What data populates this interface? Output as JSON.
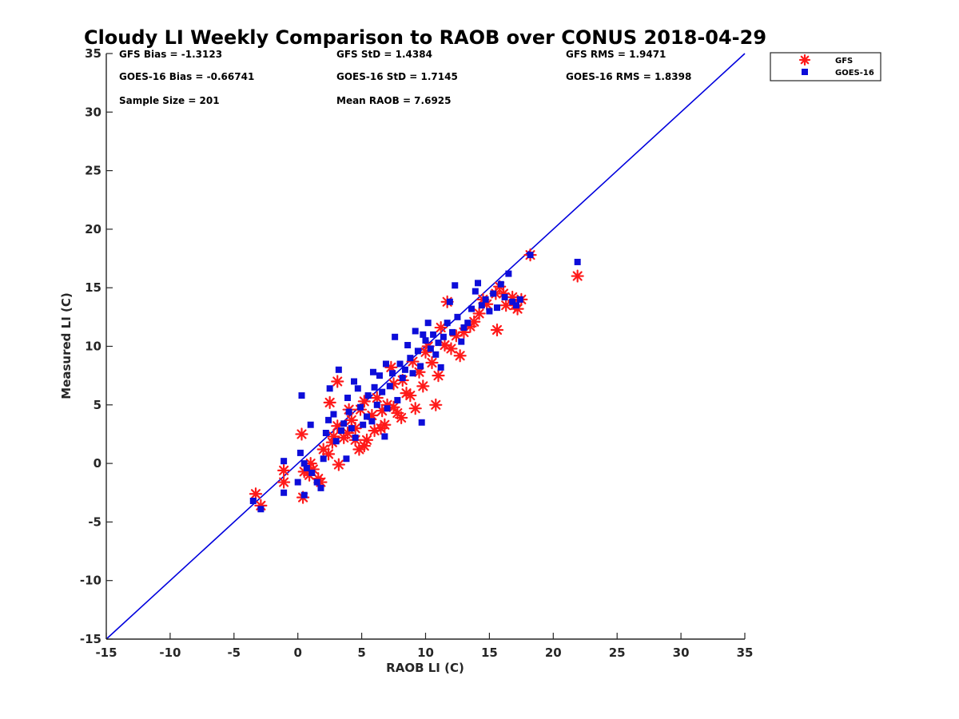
{
  "chart_data": {
    "type": "scatter",
    "title": "Cloudy LI Weekly Comparison to RAOB over CONUS 2018-04-29",
    "xlabel": "RAOB LI (C)",
    "ylabel": "Measured LI (C)",
    "xlim": [
      -15,
      35
    ],
    "ylim": [
      -15,
      35
    ],
    "xticks": [
      -15,
      -10,
      -5,
      0,
      5,
      10,
      15,
      20,
      25,
      30,
      35
    ],
    "yticks": [
      -15,
      -10,
      -5,
      0,
      5,
      10,
      15,
      20,
      25,
      30,
      35
    ],
    "grid": false,
    "legend_position": "top-right, outside plot",
    "reference_line": {
      "x": [
        -15,
        35
      ],
      "y": [
        -15,
        35
      ],
      "color": "#0000dd"
    },
    "stats": [
      "GFS Bias = -1.3123",
      "GFS StD = 1.4384",
      "GFS RMS = 1.9471",
      "GOES-16 Bias = -0.66741",
      "GOES-16 StD = 1.7145",
      "GOES-16 RMS = 1.8398",
      "Sample Size = 201",
      "Mean RAOB = 7.6925"
    ],
    "series": [
      {
        "name": "GFS",
        "marker": "asterisk",
        "color": "#ff1a1a",
        "points": [
          [
            -3.3,
            -2.6
          ],
          [
            -2.9,
            -3.6
          ],
          [
            -1.1,
            -0.6
          ],
          [
            -1.1,
            -1.6
          ],
          [
            0.3,
            2.5
          ],
          [
            0.4,
            -2.9
          ],
          [
            0.5,
            -0.7
          ],
          [
            0.9,
            -1.0
          ],
          [
            1.0,
            0.0
          ],
          [
            1.2,
            -0.5
          ],
          [
            1.6,
            -1.3
          ],
          [
            1.8,
            -1.6
          ],
          [
            2.0,
            1.2
          ],
          [
            2.4,
            0.8
          ],
          [
            2.5,
            5.2
          ],
          [
            2.7,
            1.8
          ],
          [
            2.8,
            2.3
          ],
          [
            3.1,
            3.2
          ],
          [
            3.1,
            7.0
          ],
          [
            3.2,
            -0.1
          ],
          [
            3.6,
            2.2
          ],
          [
            3.9,
            2.6
          ],
          [
            4.0,
            4.6
          ],
          [
            4.2,
            3.7
          ],
          [
            4.5,
            3.0
          ],
          [
            4.5,
            2.0
          ],
          [
            4.8,
            1.2
          ],
          [
            4.9,
            4.6
          ],
          [
            5.2,
            1.5
          ],
          [
            5.2,
            5.3
          ],
          [
            5.4,
            2.0
          ],
          [
            5.8,
            4.1
          ],
          [
            6.0,
            2.8
          ],
          [
            6.2,
            5.6
          ],
          [
            6.5,
            3.0
          ],
          [
            6.6,
            4.5
          ],
          [
            6.8,
            3.3
          ],
          [
            7.0,
            5.0
          ],
          [
            7.3,
            8.2
          ],
          [
            7.5,
            6.8
          ],
          [
            7.5,
            4.8
          ],
          [
            7.8,
            4.3
          ],
          [
            8.1,
            3.9
          ],
          [
            8.2,
            7.1
          ],
          [
            8.5,
            6.0
          ],
          [
            8.8,
            5.8
          ],
          [
            9.0,
            8.7
          ],
          [
            9.2,
            4.7
          ],
          [
            9.5,
            7.8
          ],
          [
            9.8,
            6.6
          ],
          [
            10.0,
            9.5
          ],
          [
            10.2,
            10.0
          ],
          [
            10.5,
            8.6
          ],
          [
            10.8,
            5.0
          ],
          [
            11.0,
            7.5
          ],
          [
            11.2,
            11.6
          ],
          [
            11.5,
            10.1
          ],
          [
            11.7,
            13.8
          ],
          [
            12.0,
            9.8
          ],
          [
            12.4,
            10.9
          ],
          [
            12.7,
            9.2
          ],
          [
            13.0,
            11.2
          ],
          [
            13.5,
            11.7
          ],
          [
            13.8,
            12.1
          ],
          [
            14.2,
            12.8
          ],
          [
            14.5,
            14.0
          ],
          [
            14.8,
            13.6
          ],
          [
            15.5,
            14.5
          ],
          [
            15.6,
            11.4
          ],
          [
            15.8,
            15.1
          ],
          [
            16.1,
            14.5
          ],
          [
            16.3,
            13.5
          ],
          [
            16.8,
            14.2
          ],
          [
            17.0,
            13.5
          ],
          [
            17.2,
            13.2
          ],
          [
            17.5,
            14.0
          ],
          [
            18.2,
            17.8
          ],
          [
            21.9,
            16.0
          ]
        ]
      },
      {
        "name": "GOES-16",
        "marker": "square",
        "color": "#0d0dd9",
        "points": [
          [
            -3.5,
            -3.2
          ],
          [
            -2.9,
            -3.9
          ],
          [
            -1.1,
            0.2
          ],
          [
            -1.1,
            -2.5
          ],
          [
            0.0,
            -1.6
          ],
          [
            0.2,
            0.9
          ],
          [
            0.3,
            5.8
          ],
          [
            0.5,
            0.0
          ],
          [
            0.5,
            -2.7
          ],
          [
            0.7,
            -0.4
          ],
          [
            1.0,
            3.3
          ],
          [
            1.1,
            -0.8
          ],
          [
            1.5,
            -1.6
          ],
          [
            1.8,
            -2.1
          ],
          [
            2.0,
            0.4
          ],
          [
            2.2,
            2.6
          ],
          [
            2.4,
            3.7
          ],
          [
            2.5,
            6.4
          ],
          [
            2.8,
            4.2
          ],
          [
            3.0,
            1.9
          ],
          [
            3.2,
            8.0
          ],
          [
            3.4,
            2.8
          ],
          [
            3.6,
            3.4
          ],
          [
            3.8,
            0.4
          ],
          [
            3.9,
            5.6
          ],
          [
            4.0,
            4.4
          ],
          [
            4.2,
            3.0
          ],
          [
            4.4,
            7.0
          ],
          [
            4.5,
            2.2
          ],
          [
            4.7,
            6.4
          ],
          [
            4.9,
            4.8
          ],
          [
            5.1,
            3.3
          ],
          [
            5.4,
            4.0
          ],
          [
            5.5,
            5.8
          ],
          [
            5.8,
            3.6
          ],
          [
            5.9,
            7.8
          ],
          [
            6.0,
            6.5
          ],
          [
            6.2,
            5.0
          ],
          [
            6.4,
            7.5
          ],
          [
            6.6,
            6.1
          ],
          [
            6.8,
            2.3
          ],
          [
            6.9,
            8.5
          ],
          [
            7.0,
            4.7
          ],
          [
            7.2,
            6.6
          ],
          [
            7.4,
            7.7
          ],
          [
            7.6,
            10.8
          ],
          [
            7.8,
            5.4
          ],
          [
            8.0,
            8.5
          ],
          [
            8.2,
            7.3
          ],
          [
            8.4,
            8.0
          ],
          [
            8.6,
            10.1
          ],
          [
            8.8,
            9.0
          ],
          [
            9.0,
            7.7
          ],
          [
            9.2,
            11.3
          ],
          [
            9.4,
            9.6
          ],
          [
            9.6,
            8.3
          ],
          [
            9.7,
            3.5
          ],
          [
            9.8,
            11.0
          ],
          [
            10.0,
            10.5
          ],
          [
            10.2,
            12.0
          ],
          [
            10.4,
            9.8
          ],
          [
            10.6,
            11.0
          ],
          [
            10.8,
            9.3
          ],
          [
            11.0,
            10.3
          ],
          [
            11.2,
            8.2
          ],
          [
            11.4,
            10.8
          ],
          [
            11.7,
            12.0
          ],
          [
            11.9,
            13.8
          ],
          [
            12.1,
            11.2
          ],
          [
            12.3,
            15.2
          ],
          [
            12.5,
            12.5
          ],
          [
            12.8,
            10.4
          ],
          [
            13.0,
            11.6
          ],
          [
            13.3,
            12.0
          ],
          [
            13.6,
            13.2
          ],
          [
            13.9,
            14.7
          ],
          [
            14.1,
            15.4
          ],
          [
            14.4,
            13.5
          ],
          [
            14.7,
            14.0
          ],
          [
            15.0,
            13.0
          ],
          [
            15.3,
            14.5
          ],
          [
            15.6,
            13.3
          ],
          [
            15.9,
            15.3
          ],
          [
            16.2,
            14.2
          ],
          [
            16.5,
            16.2
          ],
          [
            16.8,
            13.8
          ],
          [
            17.1,
            13.5
          ],
          [
            17.4,
            14.0
          ],
          [
            18.2,
            17.8
          ],
          [
            21.9,
            17.2
          ]
        ]
      }
    ]
  }
}
